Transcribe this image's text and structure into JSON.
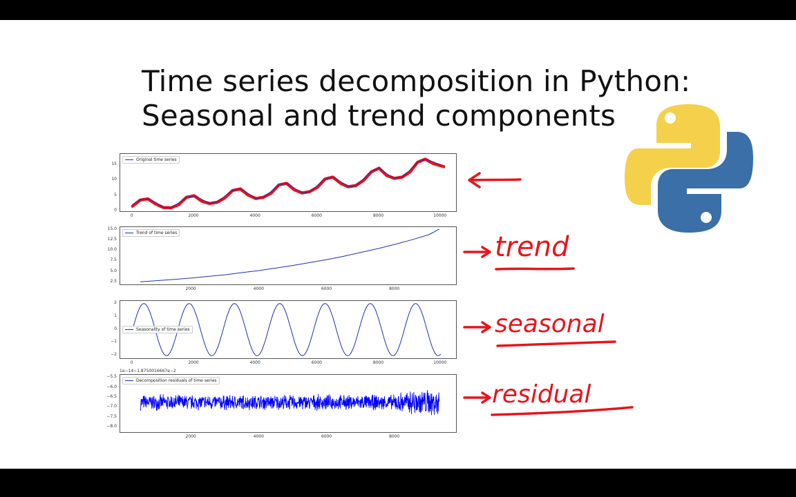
{
  "slide": {
    "title_line1": "Time series decomposition in Python:",
    "title_line2": "Seasonal and trend components"
  },
  "annotations": {
    "trend": "trend",
    "seasonal": "seasonal",
    "residual": "residual"
  },
  "colors": {
    "series_blue": "#1f2fb0",
    "residual_blue": "#0000ff",
    "ink_red": "#e8141b",
    "python_blue": "#3a6fa8",
    "python_yellow": "#f5d04a"
  },
  "chart_data": [
    {
      "type": "line",
      "legend": "Original time series",
      "legend_position": "top-left",
      "x": [
        0,
        250,
        500,
        750,
        1000,
        1250,
        1500,
        1750,
        2000,
        2250,
        2500,
        2750,
        3000,
        3250,
        3500,
        3750,
        4000,
        4250,
        4500,
        4750,
        5000,
        5250,
        5500,
        5750,
        6000,
        6250,
        6500,
        6750,
        7000,
        7250,
        7500,
        7750,
        8000,
        8250,
        8500,
        8750,
        9000,
        9250,
        9500,
        9750,
        10000
      ],
      "y": [
        2.2,
        3.6,
        4.0,
        2.9,
        1.2,
        1.1,
        2.7,
        4.5,
        5.0,
        3.8,
        2.5,
        2.9,
        4.9,
        6.7,
        7.2,
        5.8,
        4.1,
        4.5,
        6.4,
        8.5,
        9.0,
        7.5,
        5.9,
        6.3,
        8.3,
        10.4,
        11.0,
        9.6,
        7.9,
        8.3,
        10.5,
        12.7,
        13.9,
        12.1,
        10.6,
        11.0,
        13.2,
        15.8,
        16.8,
        16.0,
        14.9
      ],
      "xticks": [
        "0",
        "2000",
        "4000",
        "6000",
        "8000",
        "10000"
      ],
      "yticks": [
        "0",
        "5",
        "10",
        "15"
      ],
      "xlim": [
        -400,
        10500
      ],
      "ylim": [
        0,
        18.5
      ]
    },
    {
      "type": "line",
      "legend": "Trend of time series",
      "legend_position": "top-left",
      "x": [
        500,
        1000,
        1500,
        2000,
        2500,
        3000,
        3500,
        4000,
        4500,
        5000,
        5500,
        6000,
        6500,
        7000,
        7500,
        8000,
        8500,
        9000,
        9300
      ],
      "y": [
        2.6,
        2.9,
        3.2,
        3.5,
        3.9,
        4.3,
        4.8,
        5.3,
        5.9,
        6.5,
        7.2,
        7.9,
        8.7,
        9.6,
        10.5,
        11.5,
        12.6,
        13.8,
        15.1
      ],
      "xticks": [
        "2000",
        "4000",
        "6000",
        "8000"
      ],
      "yticks": [
        "2.5",
        "5.0",
        "7.5",
        "10.0",
        "12.5",
        "15.0"
      ],
      "xlim": [
        -100,
        9800
      ],
      "ylim": [
        2.0,
        15.6
      ]
    },
    {
      "type": "line",
      "legend": "Seasonality of time series",
      "legend_position": "center-left",
      "function": "2*sin(2*pi*x/1470)",
      "amplitude": 2,
      "period": 1470,
      "x_range": [
        0,
        10000
      ],
      "xticks": [
        "0",
        "2000",
        "4000",
        "6000",
        "8000",
        "10000"
      ],
      "yticks": [
        "2",
        "1",
        "0",
        "−1",
        "−2"
      ],
      "xlim": [
        -400,
        10500
      ],
      "ylim": [
        -2.2,
        2.2
      ]
    },
    {
      "type": "line",
      "legend": "Decomposition residuals of time series",
      "legend_position": "top-left",
      "offset_text": "1e−14−1.8750016667e−2",
      "x_range": [
        500,
        9300
      ],
      "center": -6.75,
      "noise_amplitude": 0.35,
      "xticks": [
        "2000",
        "4000",
        "6000",
        "8000"
      ],
      "yticks": [
        "−5.5",
        "−6.0",
        "−6.5",
        "−7.0",
        "−7.5",
        "−8.0"
      ],
      "xlim": [
        -100,
        9800
      ],
      "ylim": [
        -8.25,
        -5.35
      ]
    }
  ]
}
